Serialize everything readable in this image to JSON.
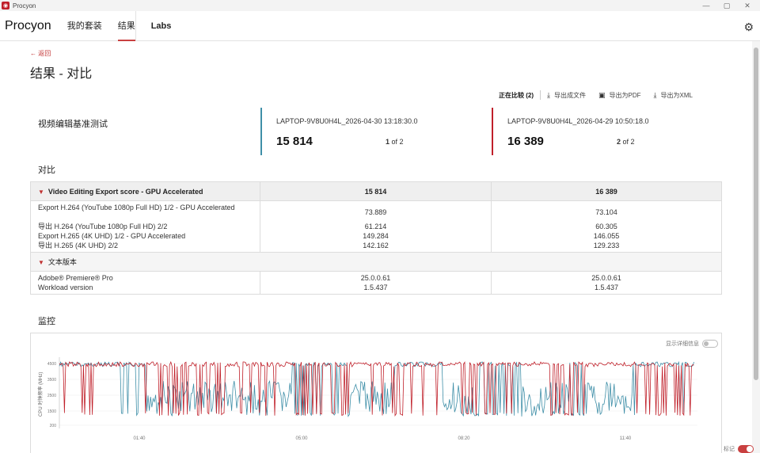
{
  "window": {
    "title": "Procyon",
    "minimize": "—",
    "maximize": "▢",
    "close": "✕"
  },
  "nav": {
    "brand": "Procyon",
    "items": [
      "我的套装",
      "结果",
      "Labs"
    ],
    "active": 1
  },
  "page": {
    "back_label": "返回",
    "title": "结果 - 对比"
  },
  "toolbar": {
    "comparing": "正在比较 (2)",
    "export_file": "导出成文件",
    "export_pdf": "导出为PDF",
    "export_xml": "导出为XML"
  },
  "benchmark": {
    "name": "视频编辑基准测试"
  },
  "runs": [
    {
      "name": "LAPTOP-9V8U0H4L_2026-04-30 13:18:30.0",
      "score": "15 814",
      "index": "1",
      "of_total": "of 2",
      "color": "#3f8fa8"
    },
    {
      "name": "LAPTOP-9V8U0H4L_2026-04-29 10:50:18.0",
      "score": "16 389",
      "index": "2",
      "of_total": "of 2",
      "color": "#c0202a"
    }
  ],
  "compare": {
    "label": "对比",
    "group1": {
      "title": "Video Editing Export score - GPU Accelerated",
      "v1": "15 814",
      "v2": "16 389",
      "rows": [
        {
          "label": "Export H.264 (YouTube 1080p Full HD) 1/2 - GPU Accelerated",
          "v1": "73.889",
          "v2": "73.104"
        },
        {
          "label": "导出 H.264 (YouTube 1080p Full HD) 2/2",
          "v1": "61.214",
          "v2": "60.305"
        },
        {
          "label": "Export H.265 (4K UHD) 1/2 - GPU Accelerated",
          "v1": "149.284",
          "v2": "146.055"
        },
        {
          "label": "导出 H.265 (4K UHD) 2/2",
          "v1": "142.162",
          "v2": "129.233"
        }
      ]
    },
    "group2": {
      "title": "文本版本",
      "rows": [
        {
          "label": "Adobe® Premiere® Pro",
          "v1": "25.0.0.61",
          "v2": "25.0.0.61"
        },
        {
          "label": "Workload version",
          "v1": "1.5.437",
          "v2": "1.5.437"
        }
      ]
    }
  },
  "monitor": {
    "label": "监控",
    "detail_toggle": "显示详细信息",
    "mark_toggle": "标记",
    "y_label": "CPU 时钟频率 (MHz)",
    "y_ticks": [
      "4500",
      "3500",
      "2500",
      "1500",
      "200"
    ],
    "x_ticks": [
      "01:40",
      "05:00",
      "08:20",
      "11:40"
    ],
    "colors": {
      "run1": "#3f8fa8",
      "run2": "#c0202a"
    }
  }
}
